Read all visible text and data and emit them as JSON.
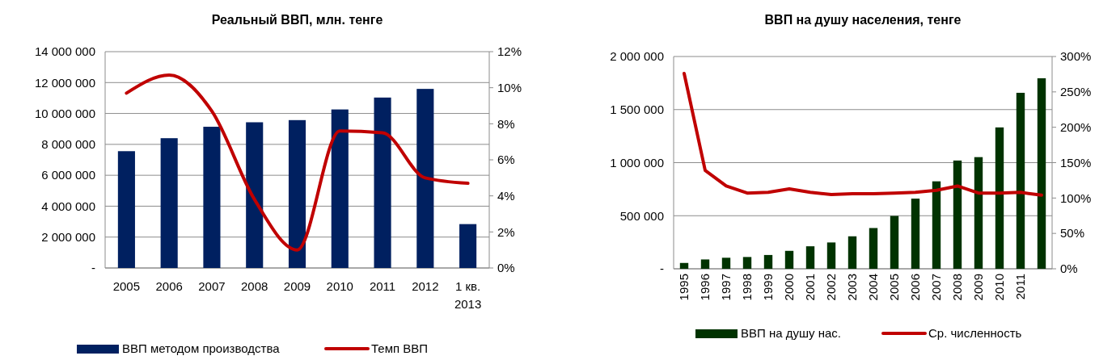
{
  "chart_data": [
    {
      "type": "bar",
      "title": "Реальный ВВП, млн. тенге",
      "categories": [
        "2005",
        "2006",
        "2007",
        "2008",
        "2009",
        "2010",
        "2011",
        "2012",
        "1 кв. 2013"
      ],
      "series": [
        {
          "name": "ВВП методом производства",
          "color": "#002060",
          "values": [
            7560000,
            8400000,
            9140000,
            9430000,
            9570000,
            10260000,
            11030000,
            11590000,
            2840000
          ]
        },
        {
          "name": "Темп ВВП",
          "type": "line",
          "axis": "y2",
          "color": "#c00000",
          "values": [
            9.7,
            10.7,
            8.7,
            3.8,
            1.0,
            7.6,
            7.5,
            5.0,
            4.7
          ]
        }
      ],
      "ylim": [
        0,
        14000000
      ],
      "yticks": [
        {
          "value": 0,
          "label": "-"
        },
        {
          "value": 2000000,
          "label": "2 000 000"
        },
        {
          "value": 4000000,
          "label": "4 000 000"
        },
        {
          "value": 6000000,
          "label": "6 000 000"
        },
        {
          "value": 8000000,
          "label": "8 000 000"
        },
        {
          "value": 10000000,
          "label": "10 000 000"
        },
        {
          "value": 12000000,
          "label": "12 000 000"
        },
        {
          "value": 14000000,
          "label": "14 000 000"
        }
      ],
      "y2lim": [
        0,
        12
      ],
      "y2ticks": [
        {
          "value": 0,
          "label": "0%"
        },
        {
          "value": 2,
          "label": "2%"
        },
        {
          "value": 4,
          "label": "4%"
        },
        {
          "value": 6,
          "label": "6%"
        },
        {
          "value": 8,
          "label": "8%"
        },
        {
          "value": 10,
          "label": "10%"
        },
        {
          "value": 12,
          "label": "12%"
        }
      ],
      "grid": "y",
      "legend": "bottom"
    },
    {
      "type": "bar",
      "title": "ВВП на душу населения, тенге",
      "categories": [
        "1995",
        "1996",
        "1997",
        "1998",
        "1999",
        "2000",
        "2001",
        "2002",
        "2003",
        "2004",
        "2005",
        "2006",
        "2007",
        "2008",
        "2009",
        "2010",
        "2011",
        null
      ],
      "series": [
        {
          "name": "ВВП на душу нас.",
          "color": "#003300",
          "values": [
            55000,
            88000,
            104000,
            111000,
            130000,
            169000,
            212000,
            248000,
            306000,
            384000,
            498000,
            661000,
            824000,
            1020000,
            1052000,
            1332000,
            1658000,
            1795000
          ]
        },
        {
          "name": "Ср. численность",
          "type": "line",
          "axis": "y2",
          "color": "#c00000",
          "values": [
            276,
            139,
            117,
            107,
            108,
            113,
            108,
            105,
            106,
            106,
            107,
            108,
            111,
            117,
            107,
            107,
            108,
            104
          ]
        }
      ],
      "ylim": [
        0,
        2000000
      ],
      "yticks": [
        {
          "value": 0,
          "label": "-"
        },
        {
          "value": 500000,
          "label": "500 000"
        },
        {
          "value": 1000000,
          "label": "1 000 000"
        },
        {
          "value": 1500000,
          "label": "1 500 000"
        },
        {
          "value": 2000000,
          "label": "2 000 000"
        }
      ],
      "y2lim": [
        0,
        300
      ],
      "y2ticks": [
        {
          "value": 0,
          "label": "0%"
        },
        {
          "value": 50,
          "label": "50%"
        },
        {
          "value": 100,
          "label": "100%"
        },
        {
          "value": 150,
          "label": "150%"
        },
        {
          "value": 200,
          "label": "200%"
        },
        {
          "value": 250,
          "label": "250%"
        },
        {
          "value": 300,
          "label": "300%"
        }
      ],
      "grid": "y",
      "legend": "bottom"
    }
  ]
}
